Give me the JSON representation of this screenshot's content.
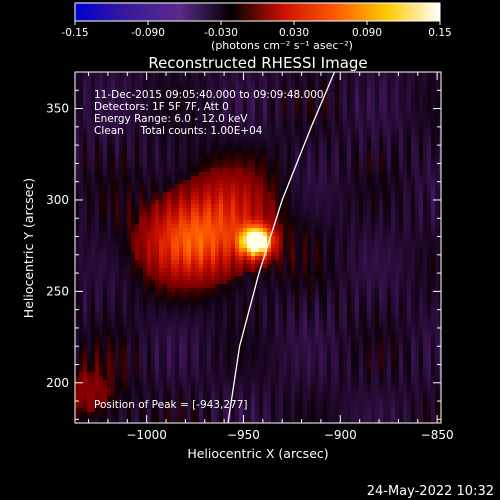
{
  "colorbar": {
    "min": -0.15,
    "max": 0.15,
    "ticks": [
      "-0.15",
      "-0.090",
      "-0.030",
      "0.030",
      "0.090",
      "0.15"
    ],
    "units_label": "(photons cm⁻² s⁻¹ asec⁻²)",
    "colors": [
      "#0000d0",
      "#3a1a9a",
      "#5a2a8a",
      "#000000",
      "#cc1100",
      "#ff5a00",
      "#ffcc00",
      "#ffffff"
    ]
  },
  "plot": {
    "title": "Reconstructed RHESSI Image",
    "xlabel": "Heliocentric X (arcsec)",
    "ylabel": "Heliocentric Y (arcsec)",
    "xticks": [
      "−1000",
      "−950",
      "−900",
      "−850"
    ],
    "yticks": [
      "200",
      "250",
      "300",
      "350"
    ],
    "xlim": [
      -1037,
      -848
    ],
    "ylim": [
      178,
      370
    ]
  },
  "annotations": {
    "line1": "11-Dec-2015 09:05:40.000 to 09:09:48.000",
    "line2": "Detectors: 1F 5F 7F, Att 0",
    "line3": "Energy Range: 6.0 - 12.0 keV",
    "line4": "Clean     Total counts: 1.00E+04",
    "peak": "Position of Peak = [-943,277]"
  },
  "footer": {
    "timestamp": "24-May-2022 10:32"
  },
  "chart_data": {
    "type": "heatmap",
    "title": "Reconstructed RHESSI Image",
    "xlabel": "Heliocentric X (arcsec)",
    "ylabel": "Heliocentric Y (arcsec)",
    "xlim": [
      -1037,
      -848
    ],
    "ylim": [
      178,
      370
    ],
    "color_range": [
      -0.15,
      0.15
    ],
    "peak": {
      "x": -943,
      "y": 277,
      "value": 0.15
    },
    "sources": [
      {
        "x": -943,
        "y": 277,
        "value": 0.15
      },
      {
        "x": -980,
        "y": 278,
        "value": 0.065
      },
      {
        "x": -955,
        "y": 300,
        "value": 0.045
      },
      {
        "x": -1030,
        "y": 195,
        "value": 0.04
      }
    ],
    "limb": [
      [
        -958,
        178
      ],
      [
        -952,
        220
      ],
      [
        -942,
        260
      ],
      [
        -930,
        300
      ],
      [
        -915,
        340
      ],
      [
        -903,
        370
      ]
    ]
  }
}
